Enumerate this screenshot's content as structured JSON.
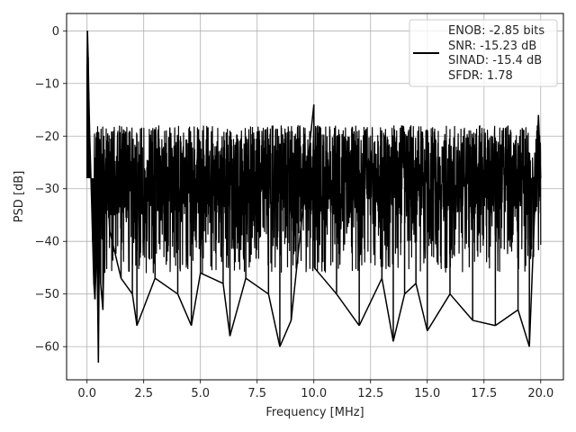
{
  "chart_data": {
    "type": "line",
    "title": "",
    "xlabel": "Frequency [MHz]",
    "ylabel": "PSD [dB]",
    "xlim": [
      -0.9,
      21.0
    ],
    "ylim": [
      -66.3,
      3.3
    ],
    "x_ticks": [
      0.0,
      2.5,
      5.0,
      7.5,
      10.0,
      12.5,
      15.0,
      17.5,
      20.0
    ],
    "x_tick_labels": [
      "0.0",
      "2.5",
      "5.0",
      "7.5",
      "10.0",
      "12.5",
      "15.0",
      "17.5",
      "20.0"
    ],
    "y_ticks": [
      0,
      -10,
      -20,
      -30,
      -40,
      -50,
      -60
    ],
    "y_tick_labels": [
      "0",
      "−10",
      "−20",
      "−30",
      "−40",
      "−50",
      "−60"
    ],
    "grid": true,
    "legend_position": "top-right",
    "series": [
      {
        "name": "ENOB: -2.85 bits\nSNR: -15.23 dB\nSINAD: -15.4 dB\nSFDR: 1.78",
        "color": "#000000",
        "x": [
          0.0,
          0.02,
          0.05,
          0.08,
          0.12,
          0.16,
          0.2,
          0.25,
          0.3,
          0.35,
          0.4,
          0.45,
          0.5,
          0.55,
          0.6,
          0.7,
          0.8,
          0.9,
          1.0,
          1.5,
          2.0,
          2.2,
          3.0,
          4.0,
          4.6,
          5.0,
          6.0,
          6.3,
          7.0,
          8.0,
          8.5,
          9.0,
          10.0,
          10.02,
          11.0,
          12.0,
          13.0,
          13.5,
          14.0,
          14.5,
          15.0,
          16.0,
          17.0,
          18.0,
          19.0,
          19.5,
          19.9,
          20.0
        ],
        "y": [
          -8,
          0,
          -5,
          -12,
          -20,
          -26,
          -32,
          -40,
          -48,
          -51,
          -45,
          -44,
          -63,
          -38,
          -48,
          -53,
          -30,
          -28,
          -38,
          -47,
          -50,
          -56,
          -47,
          -50,
          -56,
          -46,
          -48,
          -58,
          -47,
          -50,
          -60,
          -55,
          -14,
          -45,
          -50,
          -56,
          -47,
          -59,
          -50,
          -48,
          -57,
          -50,
          -55,
          -56,
          -53,
          -60,
          -16,
          -28
        ]
      }
    ],
    "noise_band": {
      "start_mhz": 0.3,
      "end_mhz": 20.0,
      "upper_db": -21,
      "lower_db": -35,
      "spur_floor_db": -46
    },
    "legend_lines": [
      "ENOB: -2.85 bits",
      "SNR: -15.23 dB",
      "SINAD: -15.4 dB",
      "SFDR: 1.78"
    ]
  }
}
